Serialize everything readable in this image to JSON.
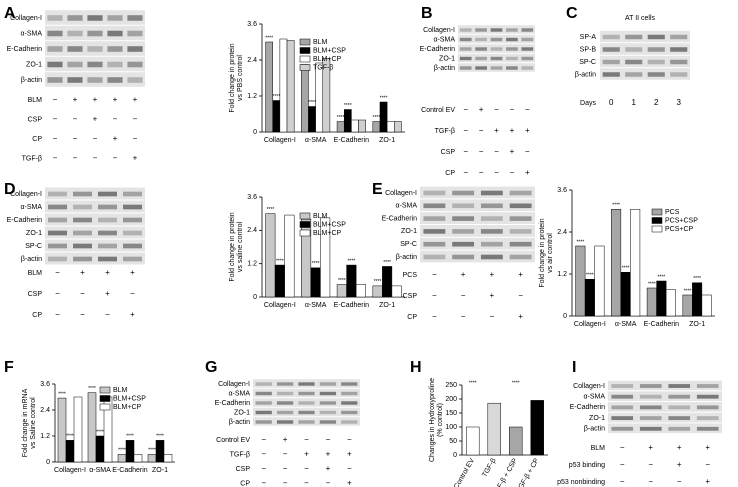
{
  "panels": [
    {
      "letter": "A",
      "blot": {
        "bands": [
          "Collagen-I",
          "α-SMA",
          "E-Cadherin",
          "ZO-1",
          "β-actin"
        ],
        "treatments": [
          {
            "label": "BLM",
            "lanes": [
              "−",
              "+",
              "+",
              "+",
              "+"
            ]
          },
          {
            "label": "CSP",
            "lanes": [
              "−",
              "−",
              "+",
              "−",
              "−"
            ]
          },
          {
            "label": "CP",
            "lanes": [
              "−",
              "−",
              "−",
              "+",
              "−"
            ]
          },
          {
            "label": "TGF-β",
            "lanes": [
              "−",
              "−",
              "−",
              "−",
              "+"
            ]
          }
        ]
      },
      "chart_data": {
        "type": "bar",
        "ylabel": [
          "Fold change in protein",
          "vs PBS control"
        ],
        "categories": [
          "Collagen-I",
          "α-SMA",
          "E-Cadherin",
          "ZO-1"
        ],
        "ylim": [
          0,
          3.6
        ],
        "yticks": [
          0,
          1.2,
          2.4,
          3.6
        ],
        "series": [
          {
            "name": "BLM",
            "color": "#a6a6a6",
            "values": [
              3.0,
              2.25,
              0.35,
              0.35
            ]
          },
          {
            "name": "BLM+CSP",
            "color": "#000000",
            "values": [
              1.05,
              0.85,
              0.75,
              1.0
            ]
          },
          {
            "name": "BLM+CP",
            "color": "#ffffff",
            "values": [
              3.1,
              2.3,
              0.4,
              0.35
            ]
          },
          {
            "name": "TGF-β",
            "color": "#d0d0d0",
            "values": [
              3.05,
              2.45,
              0.4,
              0.35
            ]
          }
        ],
        "significance": [
          {
            "text": "****",
            "category": 0,
            "series": 0
          },
          {
            "text": "****",
            "category": 0,
            "series": 1
          },
          {
            "text": "****",
            "category": 1,
            "series": 0
          },
          {
            "text": "****",
            "category": 1,
            "series": 1
          },
          {
            "text": "****",
            "category": 2,
            "series": 0
          },
          {
            "text": "****",
            "category": 2,
            "series": 1
          },
          {
            "text": "****",
            "category": 3,
            "series": 0
          },
          {
            "text": "****",
            "category": 3,
            "series": 1
          }
        ]
      }
    },
    {
      "letter": "B",
      "blot": {
        "bands": [
          "Collagen-I",
          "α-SMA",
          "E-Cadherin",
          "ZO-1",
          "β-actin"
        ],
        "treatments": [
          {
            "label": "Control EV",
            "lanes": [
              "−",
              "+",
              "−",
              "−",
              "−"
            ]
          },
          {
            "label": "TGF-β",
            "lanes": [
              "−",
              "−",
              "+",
              "+",
              "+"
            ]
          },
          {
            "label": "CSP",
            "lanes": [
              "−",
              "−",
              "−",
              "+",
              "−"
            ]
          },
          {
            "label": "CP",
            "lanes": [
              "−",
              "−",
              "−",
              "−",
              "+"
            ]
          }
        ]
      }
    },
    {
      "letter": "C",
      "blot": {
        "title": "AT II cells",
        "bands": [
          "SP-A",
          "SP-B",
          "SP-C",
          "β-actin"
        ],
        "treatments": [
          {
            "label": "Days",
            "lanes": [
              0,
              1,
              2,
              3
            ]
          }
        ]
      }
    },
    {
      "letter": "D",
      "blot": {
        "bands": [
          "Collagen-I",
          "α-SMA",
          "E-Cadherin",
          "ZO-1",
          "SP-C",
          "β-actin"
        ],
        "treatments": [
          {
            "label": "BLM",
            "lanes": [
              "−",
              "+",
              "+",
              "+"
            ]
          },
          {
            "label": "CSP",
            "lanes": [
              "−",
              "−",
              "+",
              "−"
            ]
          },
          {
            "label": "CP",
            "lanes": [
              "−",
              "−",
              "−",
              "+"
            ]
          }
        ]
      },
      "chart_data": {
        "type": "bar",
        "ylabel": [
          "Fold change in protein",
          "vs saline control"
        ],
        "categories": [
          "Collagen-I",
          "α-SMA",
          "E-Cadherin",
          "ZO-1"
        ],
        "ylim": [
          0,
          3.6
        ],
        "yticks": [
          0,
          1.2,
          2.4,
          3.6
        ],
        "series": [
          {
            "name": "BLM",
            "color": "#c8c8c8",
            "values": [
              3.0,
              2.8,
              0.45,
              0.4
            ]
          },
          {
            "name": "BLM+CSP",
            "color": "#000000",
            "values": [
              1.15,
              1.05,
              1.15,
              1.1
            ]
          },
          {
            "name": "BLM+CP",
            "color": "#ffffff",
            "values": [
              2.95,
              2.85,
              0.45,
              0.4
            ]
          }
        ],
        "significance": [
          {
            "text": "****",
            "category": 0,
            "series": 0
          },
          {
            "text": "****",
            "category": 0,
            "series": 1
          },
          {
            "text": "****",
            "category": 1,
            "series": 0
          },
          {
            "text": "****",
            "category": 1,
            "series": 1
          },
          {
            "text": "****",
            "category": 2,
            "series": 0
          },
          {
            "text": "****",
            "category": 2,
            "series": 1
          },
          {
            "text": "****",
            "category": 3,
            "series": 0
          },
          {
            "text": "****",
            "category": 3,
            "series": 1
          }
        ]
      }
    },
    {
      "letter": "E",
      "blot": {
        "bands": [
          "Collagen-I",
          "α-SMA",
          "E-Cadherin",
          "ZO-1",
          "SP-C",
          "β-actin"
        ],
        "treatments": [
          {
            "label": "PCS",
            "lanes": [
              "−",
              "+",
              "+",
              "+"
            ]
          },
          {
            "label": "CSP",
            "lanes": [
              "−",
              "−",
              "+",
              "−"
            ]
          },
          {
            "label": "CP",
            "lanes": [
              "−",
              "−",
              "−",
              "+"
            ]
          }
        ]
      },
      "chart_data": {
        "type": "bar",
        "ylabel": [
          "Fold change in protein",
          "vs air control"
        ],
        "categories": [
          "Collagen-I",
          "α-SMA",
          "E-Cadherin",
          "ZO-1"
        ],
        "ylim": [
          0,
          3.6
        ],
        "yticks": [
          0,
          1.2,
          2.4,
          3.6
        ],
        "series": [
          {
            "name": "PCS",
            "color": "#a6a6a6",
            "values": [
              2.0,
              3.05,
              0.8,
              0.6
            ]
          },
          {
            "name": "PCS+CSP",
            "color": "#000000",
            "values": [
              1.05,
              1.25,
              1.0,
              0.95
            ]
          },
          {
            "name": "PCS+CP",
            "color": "#ffffff",
            "values": [
              2.0,
              3.05,
              0.75,
              0.6
            ]
          }
        ],
        "significance": [
          {
            "text": "****",
            "category": 0,
            "series": 0
          },
          {
            "text": "****",
            "category": 0,
            "series": 1
          },
          {
            "text": "****",
            "category": 1,
            "series": 0
          },
          {
            "text": "****",
            "category": 1,
            "series": 1
          },
          {
            "text": "****",
            "category": 2,
            "series": 0
          },
          {
            "text": "****",
            "category": 2,
            "series": 1
          },
          {
            "text": "****",
            "category": 3,
            "series": 0
          },
          {
            "text": "****",
            "category": 3,
            "series": 1
          }
        ]
      }
    },
    {
      "letter": "F",
      "chart_data": {
        "type": "bar",
        "ylabel": [
          "Fold change in mRNA",
          "vs Saline control"
        ],
        "categories": [
          "Collagen-I",
          "α-SMA",
          "E-Cadherin",
          "ZO-1"
        ],
        "ylim": [
          0,
          3.6
        ],
        "yticks": [
          0,
          1.2,
          2.4,
          3.6
        ],
        "series": [
          {
            "name": "BLM",
            "color": "#c8c8c8",
            "values": [
              2.95,
              3.2,
              0.35,
              0.35
            ]
          },
          {
            "name": "BLM+CSP",
            "color": "#000000",
            "values": [
              1.0,
              1.2,
              1.0,
              1.0
            ]
          },
          {
            "name": "BLM+CP",
            "color": "#ffffff",
            "values": [
              3.0,
              3.0,
              0.35,
              0.35
            ]
          }
        ],
        "significance": [
          {
            "text": "****",
            "category": 0,
            "series": 0
          },
          {
            "text": "****",
            "category": 0,
            "series": 1
          },
          {
            "text": "****",
            "category": 1,
            "series": 0
          },
          {
            "text": "****",
            "category": 1,
            "series": 1
          },
          {
            "text": "****",
            "category": 2,
            "series": 0
          },
          {
            "text": "****",
            "category": 2,
            "series": 1
          },
          {
            "text": "****",
            "category": 3,
            "series": 0
          },
          {
            "text": "****",
            "category": 3,
            "series": 1
          }
        ]
      }
    },
    {
      "letter": "G",
      "blot": {
        "bands": [
          "Collagen-I",
          "α-SMA",
          "E-Cadherin",
          "ZO-1",
          "β-actin"
        ],
        "treatments": [
          {
            "label": "Control EV",
            "lanes": [
              "−",
              "+",
              "−",
              "−",
              "−"
            ]
          },
          {
            "label": "TGF-β",
            "lanes": [
              "−",
              "−",
              "+",
              "+",
              "+"
            ]
          },
          {
            "label": "CSP",
            "lanes": [
              "−",
              "−",
              "−",
              "+",
              "−"
            ]
          },
          {
            "label": "CP",
            "lanes": [
              "−",
              "−",
              "−",
              "−",
              "+"
            ]
          }
        ]
      }
    },
    {
      "letter": "H",
      "chart_data": {
        "type": "bar",
        "ylabel": [
          "Changes in Hydroxyproline",
          "(% control)"
        ],
        "categories": [
          "Control EV",
          "TGF-β",
          "TGF-β + CSP",
          "TGF-β + CP"
        ],
        "values": [
          100,
          185,
          100,
          195
        ],
        "colors": [
          "#ffffff",
          "#d9d9d9",
          "#a6a6a6",
          "#000000"
        ],
        "ylim": [
          0,
          250
        ],
        "yticks": [
          0,
          50,
          100,
          150,
          200,
          250
        ],
        "significance": [
          {
            "text": "****",
            "category": 0
          },
          {
            "text": "****",
            "category": 2
          }
        ]
      }
    },
    {
      "letter": "I",
      "blot": {
        "bands": [
          "Collagen-I",
          "α-SMA",
          "E-Cadherin",
          "ZO-1",
          "β-actin"
        ],
        "treatments": [
          {
            "label": "BLM",
            "lanes": [
              "−",
              "+",
              "+",
              "+"
            ]
          },
          {
            "label": "p53 binding",
            "lanes": [
              "−",
              "−",
              "+",
              "−"
            ]
          },
          {
            "label": "p53 nonbinding",
            "lanes": [
              "−",
              "−",
              "−",
              "+"
            ]
          }
        ]
      }
    }
  ]
}
